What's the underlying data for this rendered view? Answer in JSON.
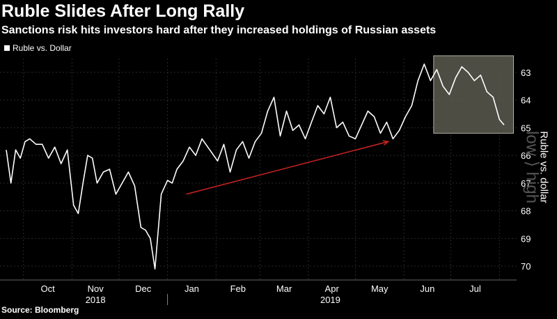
{
  "chart_data": {
    "type": "line",
    "title": "Ruble Slides After Long Rally",
    "subtitle": "Sanctions risk hits investors hard after they increased holdings of Russian assets",
    "ylabel": "Ruble vs. dollar",
    "ylabel_hint": "low ⟩ high",
    "source": "Source: Bloomberg",
    "y_inverted": true,
    "ylim": [
      62.5,
      70.5
    ],
    "yticks": [
      "63",
      "64",
      "65",
      "66",
      "67",
      "68",
      "69",
      "70"
    ],
    "xticks": [
      "Oct",
      "Nov",
      "Dec",
      "Jan",
      "Feb",
      "Mar",
      "Apr",
      "May",
      "Jun",
      "Jul"
    ],
    "years": [
      "2018",
      "2019"
    ],
    "grid": true,
    "legend_position": "top-left",
    "colors": {
      "background": "#000000",
      "line": "#ffffff",
      "trend_arrow": "#cc2222",
      "highlight_box": "#5a5a50",
      "grid": "#2a2a2a"
    },
    "series": [
      {
        "name": "Ruble vs. Dollar",
        "x": [
          "2018-09-20",
          "2018-09-23",
          "2018-09-26",
          "2018-09-29",
          "2018-10-02",
          "2018-10-05",
          "2018-10-09",
          "2018-10-13",
          "2018-10-17",
          "2018-10-21",
          "2018-10-25",
          "2018-10-29",
          "2018-11-02",
          "2018-11-05",
          "2018-11-08",
          "2018-11-11",
          "2018-11-14",
          "2018-11-17",
          "2018-11-21",
          "2018-11-25",
          "2018-11-29",
          "2018-12-03",
          "2018-12-07",
          "2018-12-11",
          "2018-12-15",
          "2018-12-18",
          "2018-12-21",
          "2018-12-24",
          "2018-12-28",
          "2019-01-01",
          "2019-01-04",
          "2019-01-07",
          "2019-01-11",
          "2019-01-15",
          "2019-01-19",
          "2019-01-23",
          "2019-01-28",
          "2019-02-02",
          "2019-02-06",
          "2019-02-10",
          "2019-02-14",
          "2019-02-18",
          "2019-02-22",
          "2019-02-26",
          "2019-03-02",
          "2019-03-06",
          "2019-03-10",
          "2019-03-14",
          "2019-03-18",
          "2019-03-22",
          "2019-03-26",
          "2019-03-30",
          "2019-04-03",
          "2019-04-07",
          "2019-04-11",
          "2019-04-15",
          "2019-04-19",
          "2019-04-23",
          "2019-04-27",
          "2019-05-01",
          "2019-05-05",
          "2019-05-09",
          "2019-05-13",
          "2019-05-17",
          "2019-05-21",
          "2019-05-25",
          "2019-05-29",
          "2019-06-02",
          "2019-06-06",
          "2019-06-10",
          "2019-06-14",
          "2019-06-18",
          "2019-06-22",
          "2019-06-26",
          "2019-06-30",
          "2019-07-04",
          "2019-07-08",
          "2019-07-12",
          "2019-07-16",
          "2019-07-20",
          "2019-07-24",
          "2019-07-28",
          "2019-08-01",
          "2019-08-04"
        ],
        "y": [
          65.8,
          67.0,
          65.8,
          66.1,
          65.5,
          65.4,
          65.6,
          65.6,
          66.1,
          65.7,
          66.3,
          65.8,
          67.8,
          68.1,
          67.0,
          66.0,
          66.1,
          67.0,
          66.6,
          66.5,
          67.4,
          67.0,
          66.6,
          67.1,
          68.6,
          68.7,
          69.0,
          70.1,
          67.4,
          66.9,
          67.0,
          66.5,
          66.2,
          65.7,
          66.0,
          65.4,
          65.8,
          66.2,
          65.6,
          66.6,
          65.8,
          65.5,
          66.1,
          65.5,
          65.2,
          64.4,
          63.9,
          65.3,
          64.4,
          65.1,
          64.9,
          65.4,
          64.8,
          64.2,
          64.5,
          63.9,
          65.0,
          64.8,
          65.3,
          65.4,
          64.9,
          64.4,
          64.6,
          65.2,
          64.8,
          65.4,
          65.1,
          64.6,
          64.2,
          63.3,
          62.7,
          63.3,
          62.9,
          63.5,
          63.8,
          63.2,
          62.8,
          63.0,
          63.3,
          63.1,
          63.7,
          63.9,
          64.7,
          64.9
        ]
      }
    ],
    "annotations": [
      {
        "type": "trend_arrow",
        "from": [
          "2019-01-13",
          67.4
        ],
        "to": [
          "2019-05-22",
          65.5
        ]
      },
      {
        "type": "highlight_box",
        "x_range": [
          "2019-06-20",
          "2019-08-10"
        ],
        "y_range": [
          62.4,
          65.2
        ]
      }
    ]
  }
}
